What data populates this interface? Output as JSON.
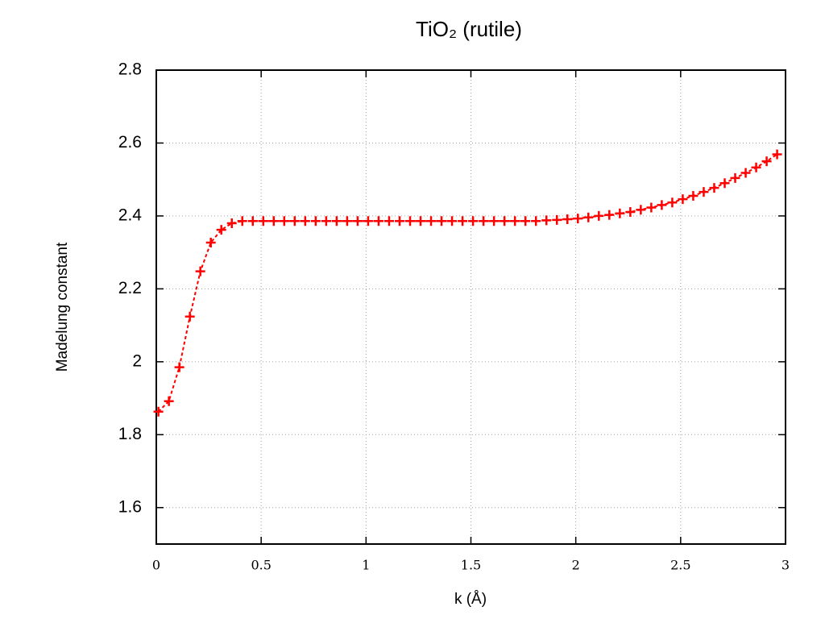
{
  "chart_data": {
    "type": "line",
    "title": "TiO₂ (rutile)",
    "xlabel": "k (Å)",
    "ylabel": "Madelung constant",
    "color": "#ff0000",
    "grid": true,
    "xlim": [
      0,
      3
    ],
    "xticks": [
      0,
      0.5,
      1,
      1.5,
      2,
      2.5,
      3
    ],
    "ylim": [
      1.5,
      2.8
    ],
    "yticks": [
      1.6,
      1.8,
      2,
      2.2,
      2.4,
      2.6,
      2.8
    ],
    "x": [
      0.01,
      0.06,
      0.11,
      0.16,
      0.21,
      0.26,
      0.31,
      0.36,
      0.41,
      0.46,
      0.51,
      0.56,
      0.61,
      0.66,
      0.71,
      0.76,
      0.81,
      0.86,
      0.91,
      0.96,
      1.01,
      1.06,
      1.11,
      1.16,
      1.21,
      1.26,
      1.31,
      1.36,
      1.41,
      1.46,
      1.51,
      1.56,
      1.61,
      1.66,
      1.71,
      1.76,
      1.81,
      1.86,
      1.91,
      1.96,
      2.01,
      2.06,
      2.11,
      2.16,
      2.21,
      2.26,
      2.31,
      2.36,
      2.41,
      2.46,
      2.51,
      2.56,
      2.61,
      2.66,
      2.71,
      2.76,
      2.81,
      2.86,
      2.91,
      2.96
    ],
    "values": [
      1.863,
      1.892,
      1.985,
      2.124,
      2.248,
      2.327,
      2.362,
      2.38,
      2.386,
      2.386,
      2.386,
      2.386,
      2.386,
      2.386,
      2.386,
      2.386,
      2.386,
      2.386,
      2.386,
      2.386,
      2.386,
      2.386,
      2.386,
      2.386,
      2.386,
      2.386,
      2.386,
      2.386,
      2.386,
      2.386,
      2.386,
      2.386,
      2.386,
      2.386,
      2.386,
      2.386,
      2.386,
      2.388,
      2.389,
      2.391,
      2.393,
      2.396,
      2.4,
      2.403,
      2.407,
      2.411,
      2.417,
      2.423,
      2.43,
      2.437,
      2.446,
      2.455,
      2.466,
      2.477,
      2.49,
      2.504,
      2.518,
      2.533,
      2.55,
      2.569
    ]
  }
}
